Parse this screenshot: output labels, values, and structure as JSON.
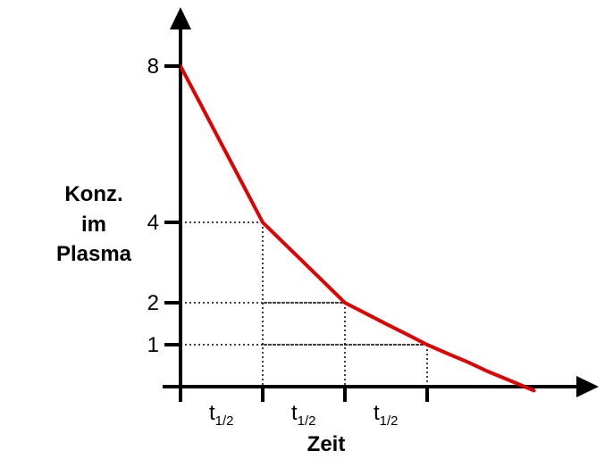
{
  "chart_data": {
    "type": "line",
    "title": "",
    "xlabel": "Zeit",
    "ylabel": "Konz. im Plasma",
    "ylabel_lines": [
      "Konz.",
      "im",
      "Plasma"
    ],
    "yticks": [
      8,
      4,
      2,
      1
    ],
    "ytick_labels": [
      "8",
      "4",
      "2",
      "1"
    ],
    "xticks": [
      1,
      2,
      3
    ],
    "xtick_labels": [
      {
        "main": "t",
        "sub": "1/2"
      },
      {
        "main": "t",
        "sub": "1/2"
      },
      {
        "main": "t",
        "sub": "1/2"
      }
    ],
    "xlim": [
      0,
      4.3
    ],
    "ylim": [
      0,
      8
    ],
    "grid": "dotted reference lines at each half-life",
    "series": [
      {
        "color": "#e00000",
        "x": [
          0,
          0.25,
          0.5,
          0.75,
          1,
          1.25,
          1.5,
          1.75,
          2,
          2.25,
          2.5,
          2.75,
          3,
          3.25,
          3.5,
          3.75,
          4,
          4.3
        ],
        "y": [
          8,
          6.73,
          5.66,
          4.76,
          4,
          3.36,
          2.83,
          2.38,
          2,
          1.68,
          1.41,
          1.19,
          1,
          0.84,
          0.71,
          0.59,
          0.5,
          0.41
        ]
      }
    ],
    "axis_color": "#000000"
  }
}
